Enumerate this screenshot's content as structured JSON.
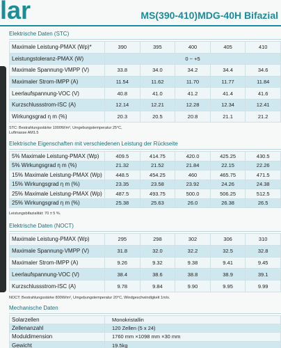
{
  "header": {
    "logo": "lar",
    "title": "MS(390-410)MDG-40H Bifazial"
  },
  "sections": [
    {
      "title": "Elektrische Daten (STC)",
      "rows": [
        [
          "Maximale Leistung-PMAX (Wp)*",
          "390",
          "395",
          "400",
          "405",
          "410"
        ],
        [
          "Leistungstoleranz-PMAX (W)",
          "0 ~ +5"
        ],
        [
          "Maximale Spannung-VMPP (V)",
          "33.8",
          "34.0",
          "34.2",
          "34.4",
          "34.6"
        ],
        [
          "Maximaler Strom-IMPP (A)",
          "11.54",
          "11.62",
          "11.70",
          "11.77",
          "11.84"
        ],
        [
          "Leerlaufspannung-VOC (V)",
          "40.8",
          "41.0",
          "41.2",
          "41.4",
          "41.6"
        ],
        [
          "Kurzschlussstrom-ISC (A)",
          "12.14",
          "12.21",
          "12.28",
          "12.34",
          "12.41"
        ],
        [
          "Wirkungsgrad η m (%)",
          "20.3",
          "20.5",
          "20.8",
          "21.1",
          "21.2"
        ]
      ],
      "note": [
        "STC: Bestrahlungsstärke 1000W/m², Umgebungstemperatur 25°C,",
        "Luftmasse AM1.5"
      ]
    },
    {
      "title": "Elektrische Eigenschaften mit verschiedenen Leistung der Rückseite",
      "rows": [
        [
          "5% Maximale Leistung-PMAX (Wp)",
          "409.5",
          "414.75",
          "420.0",
          "425.25",
          "430.5"
        ],
        [
          "5% Wirkungsgrad η m (%)",
          "21.32",
          "21.52",
          "21.84",
          "22.15",
          "22.26"
        ],
        [
          "15% Maximale Leistung-PMAX (Wp)",
          "448.5",
          "454.25",
          "460",
          "465.75",
          "471.5"
        ],
        [
          "15% Wirkungsgrad η m (%)",
          "23.35",
          "23.58",
          "23.92",
          "24.26",
          "24.38"
        ],
        [
          "25% Maximale Leistung-PMAX (Wp)",
          "487.5",
          "493.75",
          "500.0",
          "506.25",
          "512.5"
        ],
        [
          "25% Wirkungsgrad η m (%)",
          "25.38",
          "25.63",
          "26.0",
          "26.38",
          "26.5"
        ]
      ],
      "note": [
        "Leistungsbifazialität: 70 ± 5 %."
      ]
    },
    {
      "title": "Elektrische Daten (NOCT)",
      "rows": [
        [
          "Maximale Leistung-PMAX (Wp)",
          "295",
          "298",
          "302",
          "306",
          "310"
        ],
        [
          "Maximale Spannung-VMPP (V)",
          "31.8",
          "32.0",
          "32.2",
          "32.5",
          "32.8"
        ],
        [
          "Maximaler Strom-IMPP (A)",
          "9.26",
          "9.32",
          "9.38",
          "9.41",
          "9.45"
        ],
        [
          "Leerlaufspannung-VOC (V)",
          "38.4",
          "38.6",
          "38.8",
          "38.9",
          "39.1"
        ],
        [
          "Kurzschlussstrom-ISC (A)",
          "9.78",
          "9.84",
          "9.90",
          "9.95",
          "9.99"
        ]
      ],
      "note": [
        "NOCT: Bestrahlungsstärke 800W/m², Umgebungstemperatur 20°C, Windgeschwindigkeit 1m/s."
      ]
    },
    {
      "title": "Mechanische Daten",
      "rows": [
        [
          "Solarzellen",
          "Monokristallin"
        ],
        [
          "Zellenanzahl",
          "120 Zellen (5 x 24)"
        ],
        [
          "Moduldimension",
          "1760 mm ×1098 mm ×30 mm"
        ],
        [
          "Gewicht",
          "19.5kg"
        ]
      ]
    }
  ]
}
